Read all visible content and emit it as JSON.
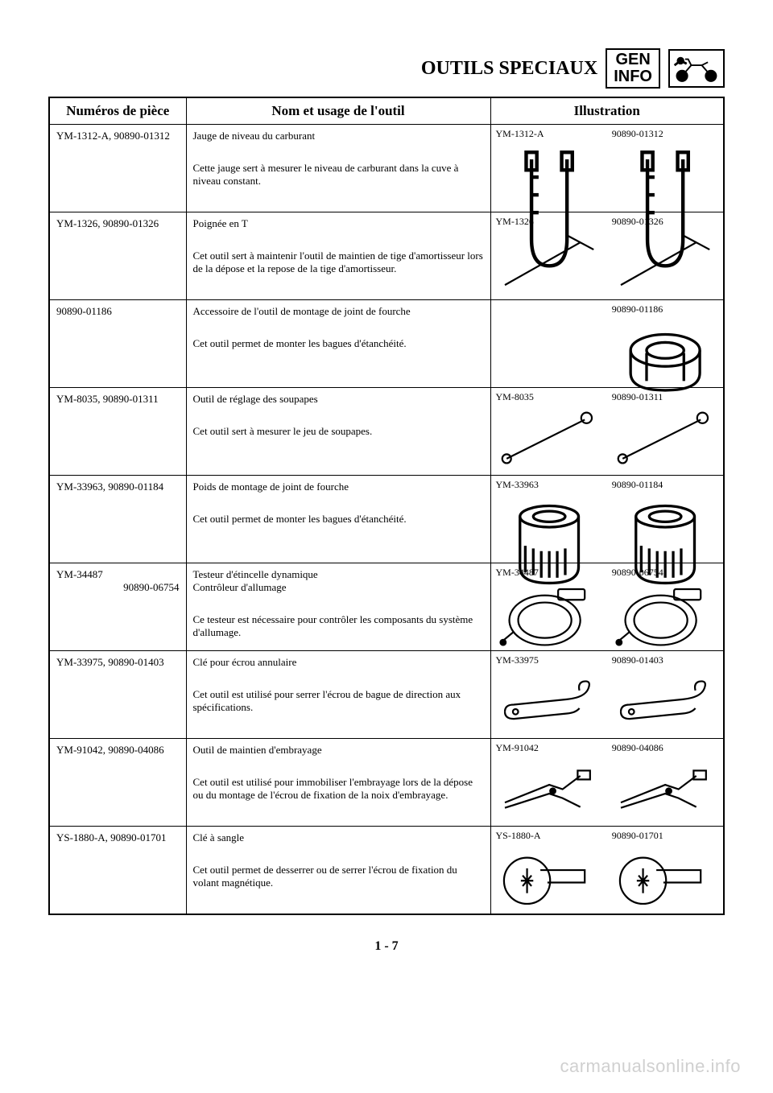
{
  "header": {
    "title": "OUTILS SPECIAUX",
    "badge_line1": "GEN",
    "badge_line2": "INFO"
  },
  "columns": {
    "part": "Numéros de pièce",
    "name": "Nom et usage de l'outil",
    "ill": "Illustration"
  },
  "rows": [
    {
      "part": "YM-1312-A, 90890-01312",
      "name": "Jauge de niveau du carburant",
      "desc": "Cette jauge sert à mesurer le niveau de carburant dans la cuve à niveau constant.",
      "ill_a": "YM-1312-A",
      "ill_b": "90890-01312",
      "icon": "gauge"
    },
    {
      "part": "YM-1326, 90890-01326",
      "name": "Poignée en T",
      "desc": "Cet outil sert à maintenir l'outil de maintien de tige d'amortisseur lors de la dépose et la repose de la tige d'amortisseur.",
      "ill_a": "YM-1326",
      "ill_b": "90890-01326",
      "icon": "thandle"
    },
    {
      "part": "90890-01186",
      "name": "Accessoire de l'outil de montage de joint de fourche",
      "desc": "Cet outil permet de monter les bagues d'étanchéité.",
      "ill_a": "",
      "ill_b": "90890-01186",
      "icon": "seal-ring"
    },
    {
      "part": "YM-8035, 90890-01311",
      "name": "Outil de réglage des soupapes",
      "desc": "Cet outil sert à mesurer le jeu de soupapes.",
      "ill_a": "YM-8035",
      "ill_b": "90890-01311",
      "icon": "valve-tool"
    },
    {
      "part": "YM-33963, 90890-01184",
      "name": "Poids de montage de joint de fourche",
      "desc": "Cet outil permet de monter les bagues d'étanchéité.",
      "ill_a": "YM-33963",
      "ill_b": "90890-01184",
      "icon": "weight"
    },
    {
      "part": "YM-34487\n90890-06754",
      "name": "Testeur d'étincelle dynamique\nContrôleur d'allumage",
      "desc": "Ce testeur est nécessaire pour contrôler les composants du système d'allumage.",
      "ill_a": "YM-34487",
      "ill_b": "90890-06754",
      "icon": "spark-tester"
    },
    {
      "part": "YM-33975, 90890-01403",
      "name": "Clé pour écrou annulaire",
      "desc": "Cet outil est utilisé pour serrer l'écrou de bague de direction aux spécifications.",
      "ill_a": "YM-33975",
      "ill_b": "90890-01403",
      "icon": "hook-wrench"
    },
    {
      "part": "YM-91042, 90890-04086",
      "name": "Outil de maintien d'embrayage",
      "desc": "Cet outil est utilisé pour immobiliser l'embrayage lors de la dépose ou du montage de l'écrou de fixation de la noix d'embrayage.",
      "ill_a": "YM-91042",
      "ill_b": "90890-04086",
      "icon": "clutch-holder"
    },
    {
      "part": "YS-1880-A, 90890-01701",
      "name": "Clé à sangle",
      "desc": "Cet outil permet de desserrer ou de serrer l'écrou de fixation du volant magnétique.",
      "ill_a": "YS-1880-A",
      "ill_b": "90890-01701",
      "icon": "strap-wrench"
    }
  ],
  "page_number": "1 - 7",
  "watermark": "carmanualsonline.info"
}
